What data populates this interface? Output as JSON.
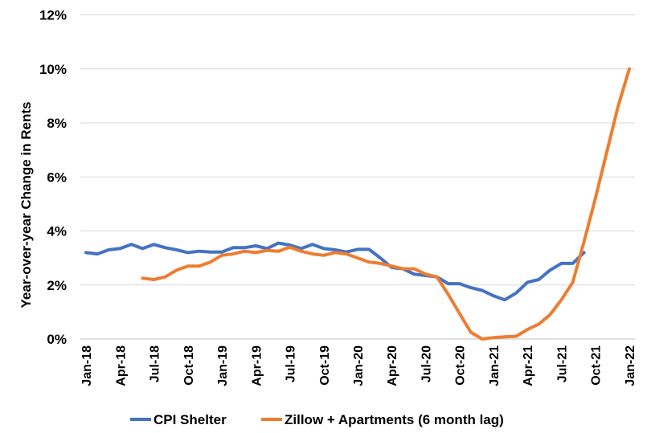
{
  "chart_data": {
    "type": "line",
    "ylabel": "Year-over-year Change in Rents",
    "ylim": [
      0,
      12
    ],
    "yticks": [
      "0%",
      "2%",
      "4%",
      "6%",
      "8%",
      "10%",
      "12%"
    ],
    "xticks": [
      "Jan-18",
      "Apr-18",
      "Jul-18",
      "Oct-18",
      "Jan-19",
      "Apr-19",
      "Jul-19",
      "Oct-19",
      "Jan-20",
      "Apr-20",
      "Jul-20",
      "Oct-20",
      "Jan-21",
      "Apr-21",
      "Jul-21",
      "Oct-21",
      "Jan-22"
    ],
    "grid": true,
    "legend_position": "bottom",
    "series": [
      {
        "name": "CPI Shelter",
        "color": "#4472C4",
        "x": [
          "Jan-18",
          "Feb-18",
          "Mar-18",
          "Apr-18",
          "May-18",
          "Jun-18",
          "Jul-18",
          "Aug-18",
          "Sep-18",
          "Oct-18",
          "Nov-18",
          "Dec-18",
          "Jan-19",
          "Feb-19",
          "Mar-19",
          "Apr-19",
          "May-19",
          "Jun-19",
          "Jul-19",
          "Aug-19",
          "Sep-19",
          "Oct-19",
          "Nov-19",
          "Dec-19",
          "Jan-20",
          "Feb-20",
          "Mar-20",
          "Apr-20",
          "May-20",
          "Jun-20",
          "Jul-20",
          "Aug-20",
          "Sep-20",
          "Oct-20",
          "Nov-20",
          "Dec-20",
          "Jan-21",
          "Feb-21",
          "Mar-21",
          "Apr-21",
          "May-21",
          "Jun-21",
          "Jul-21",
          "Aug-21",
          "Sep-21"
        ],
        "values": [
          3.2,
          3.15,
          3.3,
          3.35,
          3.5,
          3.35,
          3.5,
          3.38,
          3.3,
          3.2,
          3.25,
          3.22,
          3.22,
          3.38,
          3.38,
          3.45,
          3.35,
          3.55,
          3.48,
          3.35,
          3.5,
          3.35,
          3.3,
          3.22,
          3.32,
          3.32,
          3.0,
          2.65,
          2.6,
          2.4,
          2.35,
          2.3,
          2.05,
          2.05,
          1.9,
          1.8,
          1.6,
          1.45,
          1.7,
          2.1,
          2.2,
          2.55,
          2.8,
          2.8,
          3.2
        ]
      },
      {
        "name": "Zillow + Apartments (6 month lag)",
        "color": "#ED7D31",
        "x": [
          "Jun-18",
          "Jul-18",
          "Aug-18",
          "Sep-18",
          "Oct-18",
          "Nov-18",
          "Dec-18",
          "Jan-19",
          "Feb-19",
          "Mar-19",
          "Apr-19",
          "May-19",
          "Jun-19",
          "Jul-19",
          "Aug-19",
          "Sep-19",
          "Oct-19",
          "Nov-19",
          "Dec-19",
          "Jan-20",
          "Feb-20",
          "Mar-20",
          "Apr-20",
          "May-20",
          "Jun-20",
          "Jul-20",
          "Aug-20",
          "Sep-20",
          "Oct-20",
          "Nov-20",
          "Dec-20",
          "Jan-21",
          "Feb-21",
          "Mar-21",
          "Apr-21",
          "May-21",
          "Jun-21",
          "Jul-21",
          "Aug-21",
          "Sep-21",
          "Oct-21",
          "Nov-21",
          "Dec-21",
          "Jan-22"
        ],
        "values": [
          2.25,
          2.2,
          2.3,
          2.55,
          2.7,
          2.7,
          2.85,
          3.1,
          3.15,
          3.25,
          3.2,
          3.28,
          3.25,
          3.4,
          3.25,
          3.15,
          3.1,
          3.2,
          3.15,
          3.0,
          2.85,
          2.8,
          2.7,
          2.6,
          2.6,
          2.4,
          2.3,
          1.65,
          0.95,
          0.25,
          0.0,
          0.05,
          0.08,
          0.1,
          0.35,
          0.55,
          0.9,
          1.45,
          2.1,
          3.6,
          5.2,
          6.9,
          8.6,
          10.0
        ]
      }
    ]
  }
}
